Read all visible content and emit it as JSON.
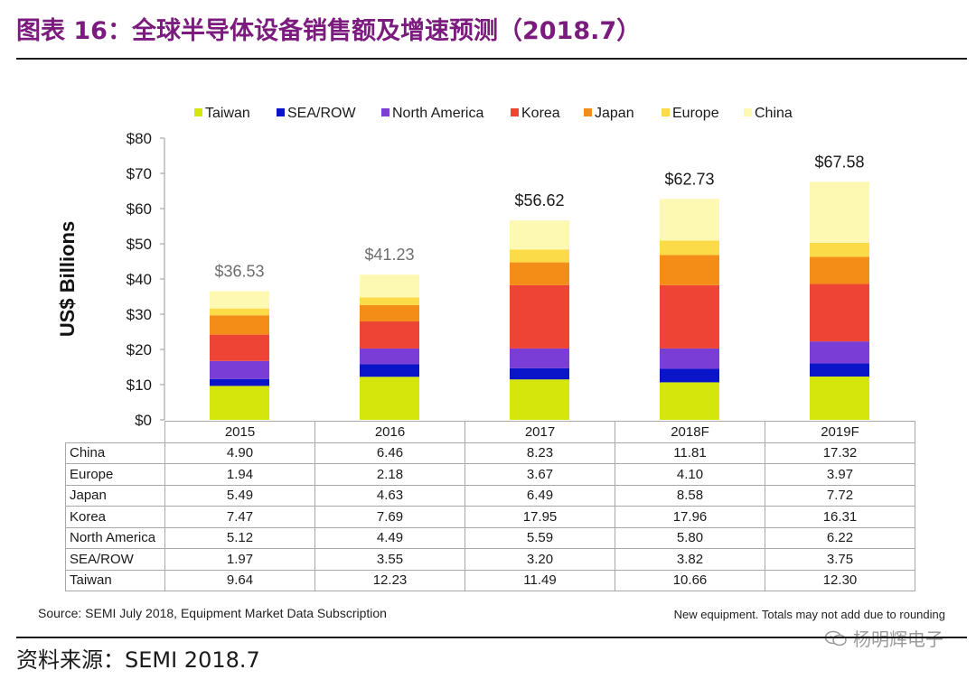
{
  "figure": {
    "title": "图表 16：全球半导体设备销售额及增速预测（2018.7）",
    "source_line": "资料来源：SEMI 2018.7",
    "source_note": "Source: SEMI July 2018, Equipment Market Data Subscription",
    "rounding_note": "New equipment. Totals may not add due to rounding",
    "watermark": "杨明辉电子"
  },
  "chart_data": {
    "type": "bar",
    "stacked": true,
    "ylabel": "US$ Billions",
    "ylim": [
      0,
      80
    ],
    "yticks": [
      "$0",
      "$10",
      "$20",
      "$30",
      "$40",
      "$50",
      "$60",
      "$70",
      "$80"
    ],
    "categories": [
      "2015",
      "2016",
      "2017",
      "2018F",
      "2019F"
    ],
    "totals": [
      "$36.53",
      "$41.23",
      "$56.62",
      "$62.73",
      "$67.58"
    ],
    "total_values": [
      36.53,
      41.23,
      56.62,
      62.73,
      67.58
    ],
    "legend_position": "top",
    "grid": false,
    "series": [
      {
        "name": "Taiwan",
        "color": "#d4e60b",
        "values": [
          9.64,
          12.23,
          11.49,
          10.66,
          12.3
        ]
      },
      {
        "name": "SEA/ROW",
        "color": "#0a14c8",
        "values": [
          1.97,
          3.55,
          3.2,
          3.82,
          3.75
        ]
      },
      {
        "name": "North America",
        "color": "#7a3ed6",
        "values": [
          5.12,
          4.49,
          5.59,
          5.8,
          6.22
        ]
      },
      {
        "name": "Korea",
        "color": "#ee4436",
        "values": [
          7.47,
          7.69,
          17.95,
          17.96,
          16.31
        ]
      },
      {
        "name": "Japan",
        "color": "#f48d18",
        "values": [
          5.49,
          4.63,
          6.49,
          8.58,
          7.72
        ]
      },
      {
        "name": "Europe",
        "color": "#fbdb48",
        "values": [
          1.94,
          2.18,
          3.67,
          4.1,
          3.97
        ]
      },
      {
        "name": "China",
        "color": "#fdf8b2",
        "values": [
          4.9,
          6.46,
          8.23,
          11.81,
          17.32
        ]
      }
    ],
    "table": {
      "columns": [
        "2015",
        "2016",
        "2017",
        "2018F",
        "2019F"
      ],
      "rows": [
        {
          "label": "China",
          "cells": [
            "4.90",
            "6.46",
            "8.23",
            "11.81",
            "17.32"
          ]
        },
        {
          "label": "Europe",
          "cells": [
            "1.94",
            "2.18",
            "3.67",
            "4.10",
            "3.97"
          ]
        },
        {
          "label": "Japan",
          "cells": [
            "5.49",
            "4.63",
            "6.49",
            "8.58",
            "7.72"
          ]
        },
        {
          "label": "Korea",
          "cells": [
            "7.47",
            "7.69",
            "17.95",
            "17.96",
            "16.31"
          ]
        },
        {
          "label": "North America",
          "cells": [
            "5.12",
            "4.49",
            "5.59",
            "5.80",
            "6.22"
          ]
        },
        {
          "label": "SEA/ROW",
          "cells": [
            "1.97",
            "3.55",
            "3.20",
            "3.82",
            "3.75"
          ]
        },
        {
          "label": "Taiwan",
          "cells": [
            "9.64",
            "12.23",
            "11.49",
            "10.66",
            "12.30"
          ]
        }
      ]
    }
  }
}
